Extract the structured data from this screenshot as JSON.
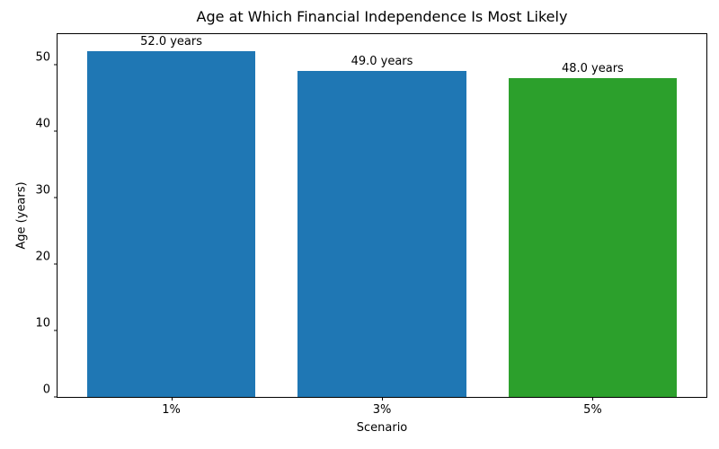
{
  "chart_data": {
    "type": "bar",
    "title": "Age at Which Financial Independence Is Most Likely",
    "xlabel": "Scenario",
    "ylabel": "Age (years)",
    "categories": [
      "1%",
      "3%",
      "5%"
    ],
    "values": [
      52.0,
      49.0,
      48.0
    ],
    "bar_labels": [
      "52.0 years",
      "49.0 years",
      "48.0 years"
    ],
    "bar_colors": [
      "#1f77b4",
      "#1f77b4",
      "#2ca02c"
    ],
    "yticks": [
      0,
      10,
      20,
      30,
      40,
      50
    ],
    "ylim": [
      0,
      54.6
    ],
    "grid": false,
    "legend": false,
    "background_color": "#ffffff",
    "text_color": "#000000"
  }
}
